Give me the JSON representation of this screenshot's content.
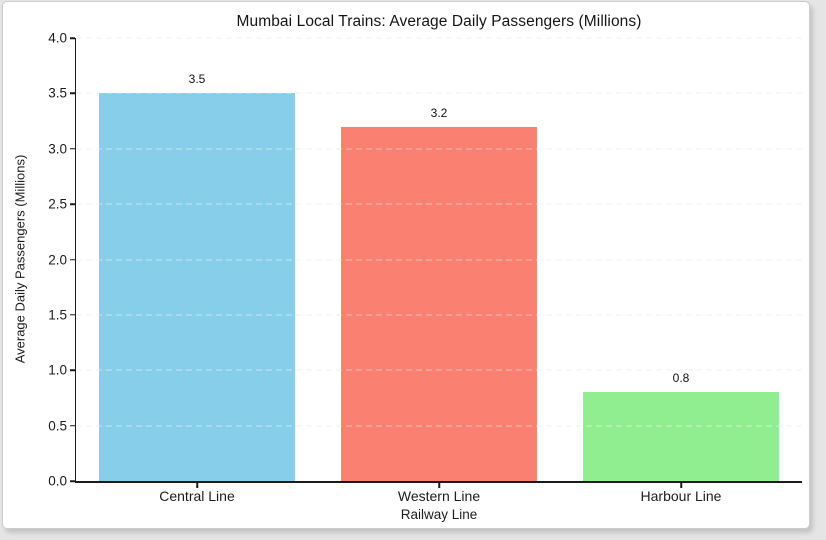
{
  "page": {
    "background_color": "#e5e5e5",
    "card_background": "#ffffff",
    "card_border_color": "#cccccc"
  },
  "chart_data": {
    "type": "bar",
    "title": "Mumbai Local Trains: Average Daily Passengers (Millions)",
    "xlabel": "Railway Line",
    "ylabel": "Average Daily Passengers (Millions)",
    "categories": [
      "Central Line",
      "Western Line",
      "Harbour Line"
    ],
    "values": [
      3.5,
      3.2,
      0.8
    ],
    "value_labels": [
      "3.5",
      "3.2",
      "0.8"
    ],
    "bar_colors": [
      "#87CEEB",
      "#FA8072",
      "#90EE90"
    ],
    "ylim": [
      0,
      4.0
    ],
    "ytick_step": 0.5,
    "ytick_labels": [
      "0.0",
      "0.5",
      "1.0",
      "1.5",
      "2.0",
      "2.5",
      "3.0",
      "3.5",
      "4.0"
    ],
    "grid": "horizontal-dashed",
    "legend": "none"
  }
}
